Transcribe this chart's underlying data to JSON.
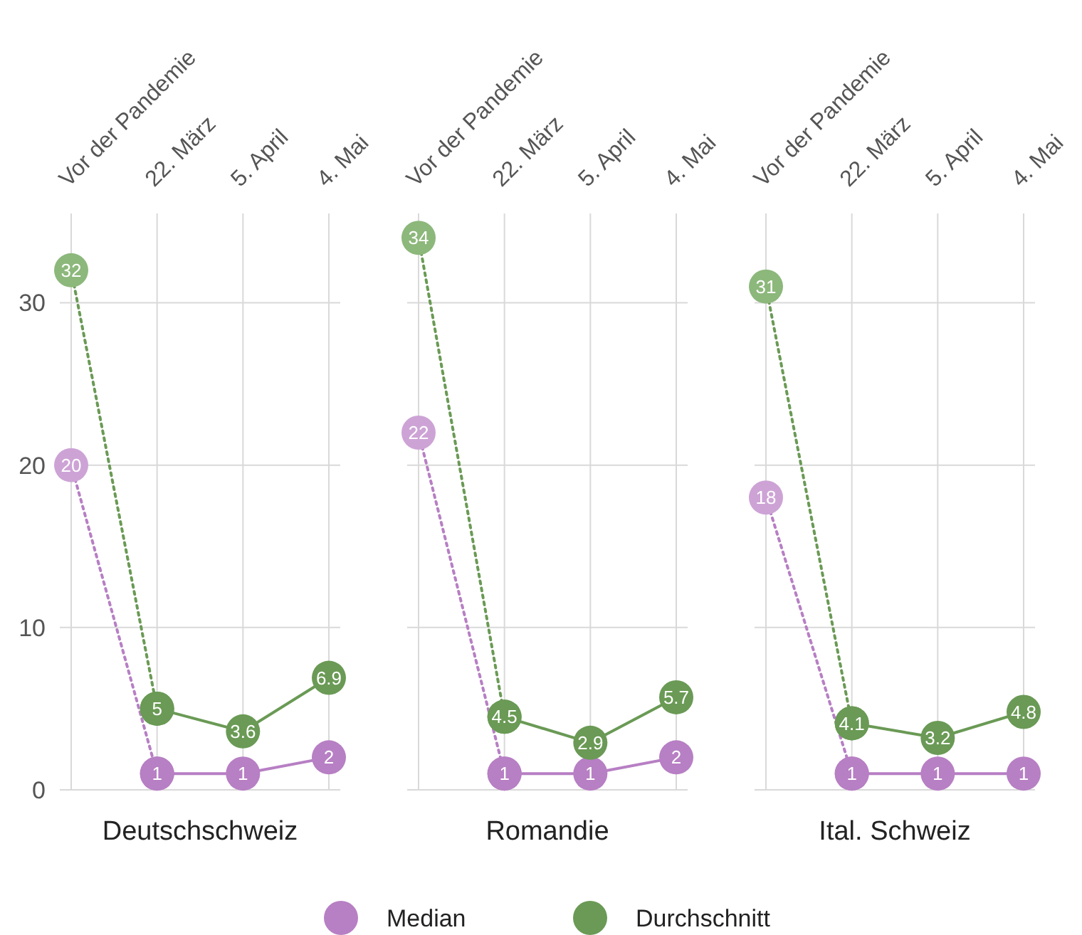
{
  "chart_data": [
    {
      "type": "line",
      "title": "Deutschschweiz",
      "categories": [
        "Vor der Pandemie",
        "22. März",
        "5. April",
        "4. Mai"
      ],
      "ylim": [
        0,
        35.5
      ],
      "yticks": [
        0,
        10,
        20,
        30
      ],
      "grid": true,
      "data_labels": true,
      "marker": "circle",
      "series": [
        {
          "color": "#b77fc4",
          "colors": [
            "#cda3d6",
            "#b77fc4",
            null,
            null
          ],
          "values": [
            20,
            1,
            null,
            null
          ],
          "value_labels": [
            "20",
            null,
            null,
            null
          ],
          "line_style": "dotted"
        },
        {
          "color": "#6a9a55",
          "colors": [
            "#8cb87b",
            "#6a9a55",
            null,
            null
          ],
          "values": [
            32,
            5,
            null,
            null
          ],
          "value_labels": [
            "32",
            null,
            null,
            null
          ],
          "line_style": "dotted"
        },
        {
          "color": "#b77fc4",
          "values": [
            null,
            1,
            1,
            2
          ],
          "line_style": "solid"
        },
        {
          "color": "#6a9a55",
          "values": [
            null,
            5,
            3.6,
            6.9
          ],
          "line_style": "solid"
        }
      ]
    },
    {
      "type": "line",
      "title": "Romandie",
      "categories": [
        "Vor der Pandemie",
        "22. März",
        "5. April",
        "4. Mai"
      ],
      "ylim": [
        0,
        35.5
      ],
      "yticks": [
        0,
        10,
        20,
        30
      ],
      "grid": true,
      "data_labels": true,
      "marker": "circle",
      "tick_labels": "x",
      "legend": "bottom",
      "series": [
        {
          "color": "#b77fc4",
          "colors": [
            "#cda3d6",
            "#b77fc4",
            null,
            null
          ],
          "values": [
            22,
            1,
            null,
            null
          ],
          "value_labels": [
            "22",
            null,
            null,
            null
          ],
          "line_style": "dotted"
        },
        {
          "color": "#6a9a55",
          "colors": [
            "#8cb87b",
            "#6a9a55",
            null,
            null
          ],
          "values": [
            34,
            4.5,
            null,
            null
          ],
          "value_labels": [
            "34",
            null,
            null,
            null
          ],
          "line_style": "dotted"
        },
        {
          "name": "Median",
          "color": "#b77fc4",
          "values": [
            null,
            1,
            1,
            2
          ],
          "line_style": "solid"
        },
        {
          "name": "Durchschnitt",
          "color": "#6a9a55",
          "values": [
            null,
            4.5,
            2.9,
            5.7
          ],
          "line_style": "solid"
        }
      ]
    },
    {
      "type": "line",
      "title": "Ital. Schweiz",
      "categories": [
        "Vor der Pandemie",
        "22. März",
        "5. April",
        "4. Mai"
      ],
      "ylim": [
        0,
        35.5
      ],
      "yticks": [
        0,
        10,
        20,
        30
      ],
      "grid": true,
      "data_labels": true,
      "marker": "circle",
      "tick_labels": "x",
      "series": [
        {
          "color": "#b77fc4",
          "colors": [
            "#cda3d6",
            "#b77fc4",
            null,
            null
          ],
          "values": [
            18,
            1,
            null,
            null
          ],
          "value_labels": [
            "18",
            null,
            null,
            null
          ],
          "line_style": "dotted"
        },
        {
          "color": "#6a9a55",
          "colors": [
            "#8cb87b",
            "#6a9a55",
            null,
            null
          ],
          "values": [
            31,
            4.1,
            null,
            null
          ],
          "value_labels": [
            "31",
            null,
            null,
            null
          ],
          "line_style": "dotted"
        },
        {
          "color": "#b77fc4",
          "values": [
            null,
            1,
            1,
            1
          ],
          "line_style": "solid"
        },
        {
          "color": "#6a9a55",
          "values": [
            null,
            4.1,
            3.2,
            4.8
          ],
          "line_style": "solid"
        }
      ]
    }
  ]
}
